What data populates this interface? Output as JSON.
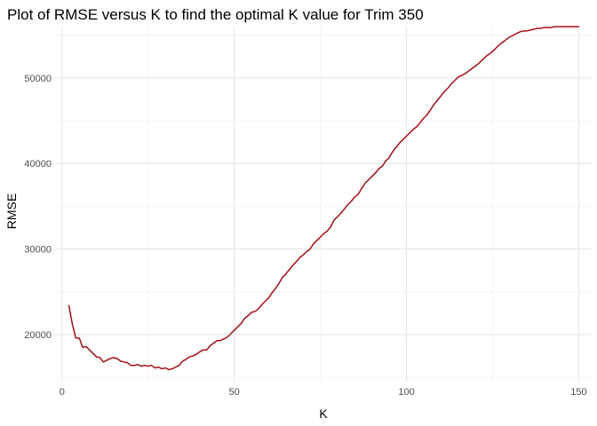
{
  "chart_data": {
    "type": "line",
    "title": "Plot of RMSE versus K to find the optimal K value for Trim 350",
    "xlabel": "K",
    "ylabel": "RMSE",
    "xlim": [
      -1.5,
      153.5
    ],
    "ylim": [
      14500,
      56000
    ],
    "x_ticks": [
      0,
      50,
      100,
      150
    ],
    "x_tick_labels": [
      "0",
      "50",
      "100",
      "150"
    ],
    "y_ticks": [
      20000,
      30000,
      40000,
      50000
    ],
    "y_tick_labels": [
      "20000",
      "30000",
      "40000",
      "50000"
    ],
    "grid": true,
    "line_color": "#a50f15",
    "series": [
      {
        "name": "",
        "x": [
          2,
          3,
          4,
          5,
          6,
          7,
          8,
          9,
          10,
          11,
          12,
          13,
          14,
          15,
          16,
          17,
          18,
          19,
          20,
          21,
          22,
          23,
          24,
          25,
          26,
          27,
          28,
          29,
          30,
          31,
          32,
          33,
          34,
          35,
          36,
          37,
          38,
          39,
          40,
          41,
          42,
          43,
          44,
          45,
          46,
          47,
          48,
          49,
          50,
          51,
          52,
          53,
          54,
          55,
          56,
          57,
          58,
          59,
          60,
          61,
          62,
          63,
          64,
          65,
          66,
          67,
          68,
          69,
          70,
          71,
          72,
          73,
          74,
          75,
          76,
          77,
          78,
          79,
          80,
          81,
          82,
          83,
          84,
          85,
          86,
          87,
          88,
          89,
          90,
          91,
          92,
          93,
          94,
          95,
          96,
          97,
          98,
          99,
          100,
          101,
          102,
          103,
          104,
          105,
          106,
          107,
          108,
          109,
          110,
          111,
          112,
          113,
          114,
          115,
          116,
          117,
          118,
          119,
          120,
          121,
          122,
          123,
          124,
          125,
          126,
          127,
          128,
          129,
          130,
          131,
          132,
          133,
          134,
          135,
          136,
          137,
          138,
          139,
          140,
          141,
          142,
          143,
          144,
          145,
          146,
          147,
          148,
          149,
          150
        ],
        "y": [
          23400,
          21200,
          19600,
          19600,
          18500,
          18600,
          18200,
          17800,
          17400,
          17300,
          16800,
          17000,
          17200,
          17300,
          17200,
          16900,
          16800,
          16700,
          16400,
          16400,
          16500,
          16300,
          16400,
          16300,
          16400,
          16100,
          16200,
          16000,
          16100,
          15900,
          16000,
          16200,
          16400,
          16900,
          17100,
          17400,
          17500,
          17700,
          18000,
          18200,
          18200,
          18700,
          19000,
          19300,
          19300,
          19500,
          19700,
          20100,
          20500,
          20900,
          21300,
          21900,
          22200,
          22600,
          22700,
          23000,
          23500,
          23900,
          24300,
          24900,
          25400,
          26000,
          26700,
          27100,
          27600,
          28100,
          28500,
          29000,
          29300,
          29700,
          30000,
          30600,
          31000,
          31400,
          31800,
          32100,
          32600,
          33400,
          33800,
          34200,
          34700,
          35200,
          35600,
          36100,
          36400,
          37100,
          37700,
          38100,
          38500,
          38900,
          39400,
          39700,
          40300,
          40700,
          41400,
          41900,
          42400,
          42800,
          43200,
          43600,
          44000,
          44300,
          44800,
          45300,
          45700,
          46300,
          46900,
          47400,
          47900,
          48400,
          48800,
          49300,
          49700,
          50100,
          50300,
          50500,
          50800,
          51100,
          51400,
          51700,
          52100,
          52500,
          52800,
          53100,
          53500,
          53900,
          54200,
          54500,
          54800,
          55000,
          55200,
          55400,
          55500,
          55500,
          55600,
          55700,
          55800,
          55800,
          55900,
          55900,
          55900,
          56000,
          56000,
          56000,
          56000,
          56000,
          56000,
          56000,
          56000
        ],
        "y_note": ""
      }
    ]
  }
}
